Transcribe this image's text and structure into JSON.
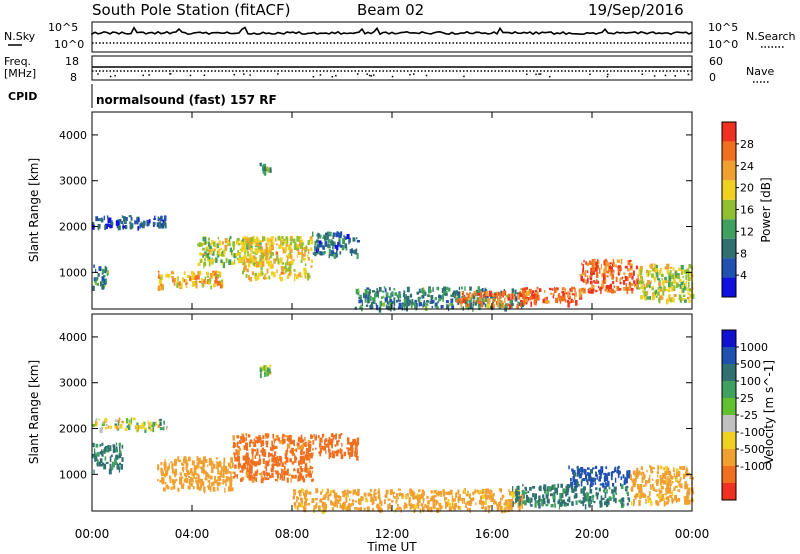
{
  "header": {
    "station": "South Pole Station (fitACF)",
    "beam": "Beam 02",
    "date": "19/Sep/2016"
  },
  "noise_panel": {
    "left_label": "N.Sky",
    "right_label": "N.Search",
    "left_ticks": [
      "10^5",
      "10^0"
    ],
    "right_ticks": [
      "10^5",
      "10^0"
    ]
  },
  "freq_panel": {
    "left_label_line1": "Freq.",
    "left_label_line2": "[MHz]",
    "right_label": "Nave",
    "left_ticks": [
      "18",
      "8"
    ],
    "right_ticks": [
      "60",
      "0"
    ]
  },
  "cpid": {
    "label": "CPID",
    "program": "normalsound (fast) 157 RF"
  },
  "chart_data": [
    {
      "type": "heatmap",
      "quantity": "Power",
      "ylabel": "Slant Range [km]",
      "yticks": [
        "1000",
        "2000",
        "3000",
        "4000"
      ],
      "ylim": [
        200,
        4500
      ],
      "xlim": [
        0,
        24
      ],
      "colorbar_label": "Power [dB]",
      "colorbar_ticks": [
        "4",
        "8",
        "12",
        "16",
        "20",
        "24",
        "28"
      ],
      "colorbar_range": [
        0,
        32
      ],
      "regions": [
        {
          "t0": 0.0,
          "t1": 3.0,
          "r0": 2000,
          "r1": 2250,
          "value": 6
        },
        {
          "t0": 0.0,
          "t1": 0.6,
          "r0": 700,
          "r1": 1200,
          "value": 10
        },
        {
          "t0": 2.6,
          "t1": 5.2,
          "r0": 700,
          "r1": 1050,
          "value": 22
        },
        {
          "t0": 4.2,
          "t1": 6.8,
          "r0": 1200,
          "r1": 1800,
          "value": 17
        },
        {
          "t0": 6.0,
          "t1": 8.8,
          "r0": 900,
          "r1": 1800,
          "value": 20
        },
        {
          "t0": 8.8,
          "t1": 10.6,
          "r0": 1400,
          "r1": 1900,
          "value": 8
        },
        {
          "t0": 6.7,
          "t1": 7.1,
          "r0": 3200,
          "r1": 3400,
          "value": 12
        },
        {
          "t0": 10.5,
          "t1": 17.2,
          "r0": 250,
          "r1": 700,
          "value": 10
        },
        {
          "t0": 14.5,
          "t1": 17.8,
          "r0": 300,
          "r1": 600,
          "value": 26
        },
        {
          "t0": 17.2,
          "t1": 19.5,
          "r0": 350,
          "r1": 700,
          "value": 28
        },
        {
          "t0": 19.5,
          "t1": 21.8,
          "r0": 600,
          "r1": 1300,
          "value": 27
        },
        {
          "t0": 21.8,
          "t1": 24.0,
          "r0": 400,
          "r1": 1200,
          "value": 18
        }
      ]
    },
    {
      "type": "heatmap",
      "quantity": "Velocity",
      "ylabel": "Slant Range [km]",
      "yticks": [
        "1000",
        "2000",
        "3000",
        "4000"
      ],
      "ylim": [
        200,
        4500
      ],
      "xlim": [
        0,
        24
      ],
      "xlabel": "Time UT",
      "xticks": [
        "00:00",
        "04:00",
        "08:00",
        "12:00",
        "16:00",
        "20:00",
        "00:00"
      ],
      "colorbar_label": "Velocity [m s^-1]",
      "colorbar_ticks": [
        "1000",
        "500",
        "100",
        "25",
        "-25",
        "-100",
        "-500",
        "-1000"
      ],
      "regions": [
        {
          "t0": 0.0,
          "t1": 3.0,
          "r0": 2000,
          "r1": 2250,
          "value": 0
        },
        {
          "t0": 0.0,
          "t1": 1.2,
          "r0": 1100,
          "r1": 1700,
          "value": 150
        },
        {
          "t0": 2.6,
          "t1": 5.6,
          "r0": 700,
          "r1": 1400,
          "value": -300
        },
        {
          "t0": 5.6,
          "t1": 8.8,
          "r0": 900,
          "r1": 1900,
          "value": -600
        },
        {
          "t0": 8.8,
          "t1": 10.6,
          "r0": 1400,
          "r1": 1900,
          "value": -700
        },
        {
          "t0": 6.7,
          "t1": 7.1,
          "r0": 3200,
          "r1": 3400,
          "value": 0
        },
        {
          "t0": 8.0,
          "t1": 17.2,
          "r0": 250,
          "r1": 700,
          "value": -200
        },
        {
          "t0": 16.8,
          "t1": 21.5,
          "r0": 350,
          "r1": 800,
          "value": 150
        },
        {
          "t0": 19.0,
          "t1": 21.5,
          "r0": 800,
          "r1": 1200,
          "value": 600
        },
        {
          "t0": 21.5,
          "t1": 24.0,
          "r0": 400,
          "r1": 1200,
          "value": -200
        }
      ]
    }
  ],
  "colors": {
    "power_scale": [
      "#1010e0",
      "#2050b0",
      "#307070",
      "#40a060",
      "#90c030",
      "#f0d020",
      "#f0a030",
      "#f07020",
      "#f03020"
    ],
    "velocity_scale": [
      "#1010d0",
      "#2050b0",
      "#307070",
      "#40a060",
      "#60c030",
      "#c0c0c0",
      "#f0d020",
      "#f0a030",
      "#f07020",
      "#f03020"
    ]
  }
}
